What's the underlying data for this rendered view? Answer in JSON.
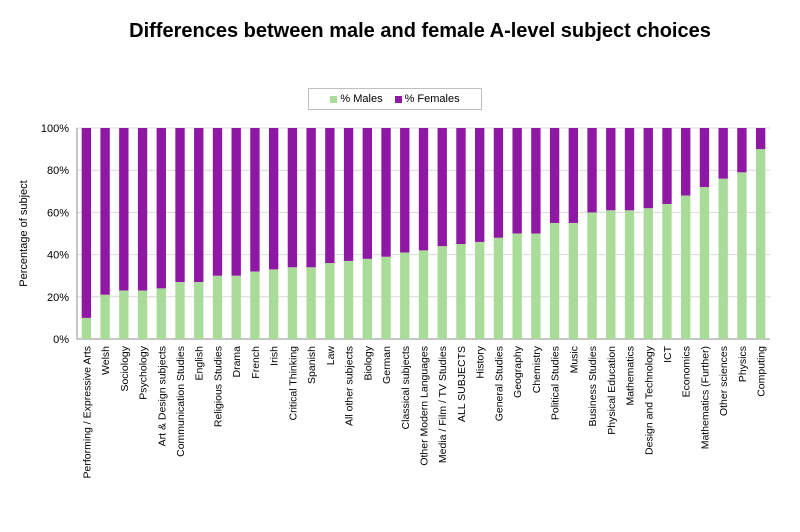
{
  "chart_data": {
    "type": "bar",
    "stacked": true,
    "title": "Differences between male and female A-level subject choices",
    "ylabel": "Percentage of subject",
    "xlabel": "",
    "ylim": [
      0,
      100
    ],
    "yticks": [
      "0%",
      "20%",
      "40%",
      "60%",
      "80%",
      "100%"
    ],
    "grid": true,
    "legend": "top-center",
    "categories": [
      "Performing / Expressive Arts",
      "Welsh",
      "Sociology",
      "Psychology",
      "Art & Design subjects",
      "Communication Studies",
      "English",
      "Religious Studies",
      "Drama",
      "French",
      "Irish",
      "Critical Thinking",
      "Spanish",
      "Law",
      "All other subjects",
      "Biology",
      "German",
      "Classical subjects",
      "Other Modern Languages",
      "Media / Film / TV Studies",
      "ALL SUBJECTS",
      "History",
      "General Studies",
      "Geography",
      "Chemistry",
      "Political Studies",
      "Music",
      "Business Studies",
      "Physical Education",
      "Mathematics",
      "Design and Technology",
      "ICT",
      "Economics",
      "Mathematics (Further)",
      "Other sciences",
      "Physics",
      "Computing"
    ],
    "series": [
      {
        "name": "% Males",
        "color": "#a9dc98",
        "values": [
          10,
          21,
          23,
          23,
          24,
          27,
          27,
          30,
          30,
          32,
          33,
          34,
          34,
          36,
          37,
          38,
          39,
          41,
          42,
          44,
          45,
          46,
          48,
          50,
          50,
          55,
          55,
          60,
          61,
          61,
          62,
          64,
          68,
          72,
          76,
          79,
          90
        ]
      },
      {
        "name": "% Females",
        "color": "#8e18a3",
        "values": [
          90,
          79,
          77,
          77,
          76,
          73,
          73,
          70,
          70,
          68,
          67,
          66,
          66,
          64,
          63,
          62,
          61,
          59,
          58,
          56,
          55,
          54,
          52,
          50,
          50,
          45,
          45,
          40,
          39,
          39,
          38,
          36,
          32,
          28,
          24,
          21,
          10
        ]
      }
    ]
  }
}
